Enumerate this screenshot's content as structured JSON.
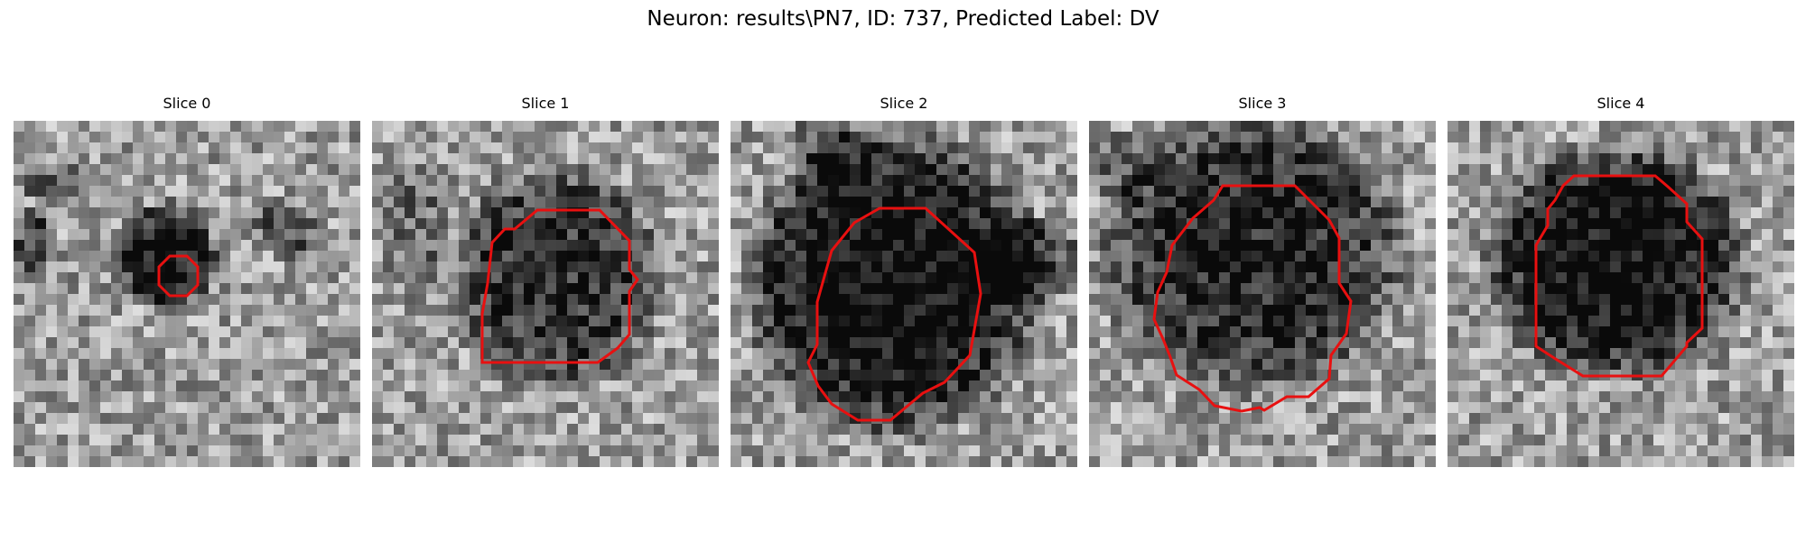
{
  "title": "Neuron: results\\PN7, ID: 737, Predicted Label: DV",
  "colors": {
    "contour": "#e81010",
    "background": "#ffffff"
  },
  "slices": [
    {
      "label": "Slice 0"
    },
    {
      "label": "Slice 1"
    },
    {
      "label": "Slice 2"
    },
    {
      "label": "Slice 3"
    },
    {
      "label": "Slice 4"
    }
  ]
}
